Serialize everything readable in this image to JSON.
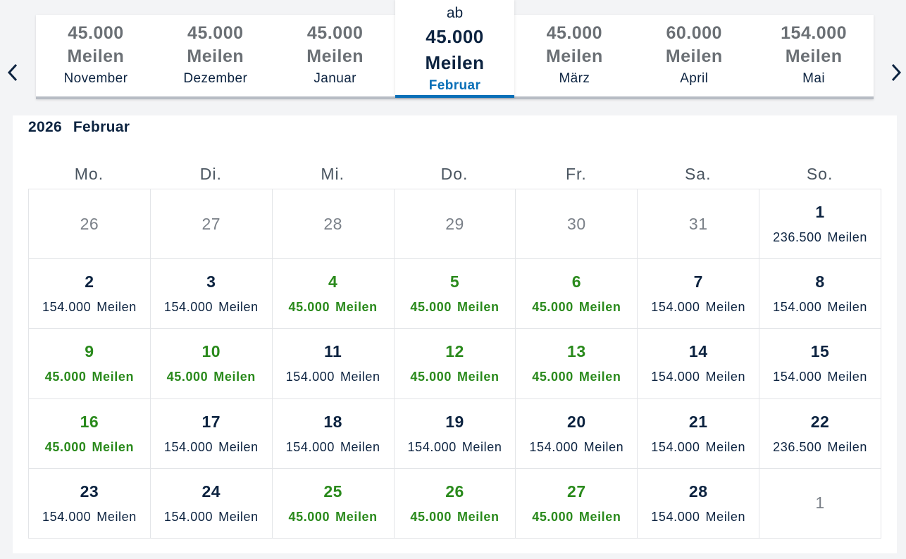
{
  "colors": {
    "accent_blue": "#0a6fb7",
    "cheap_green": "#2a8a1c",
    "text_dark": "#0c2340",
    "muted_gray": "#6b7075"
  },
  "icons": {
    "prev": "chevron-left-icon",
    "next": "chevron-right-icon"
  },
  "months": [
    {
      "miles": "45.000",
      "unit": "Meilen",
      "name": "November"
    },
    {
      "miles": "45.000",
      "unit": "Meilen",
      "name": "Dezember"
    },
    {
      "miles": "45.000",
      "unit": "Meilen",
      "name": "Januar"
    },
    {
      "prefix": "ab",
      "miles": "45.000",
      "unit": "Meilen",
      "name": "Februar",
      "active": true
    },
    {
      "miles": "45.000",
      "unit": "Meilen",
      "name": "März"
    },
    {
      "miles": "60.000",
      "unit": "Meilen",
      "name": "April"
    },
    {
      "miles": "154.000",
      "unit": "Meilen",
      "name": "Mai"
    }
  ],
  "calendar": {
    "year": "2026",
    "month": "Februar",
    "weekdays": [
      "Mo.",
      "Di.",
      "Mi.",
      "Do.",
      "Fr.",
      "Sa.",
      "So."
    ],
    "days": [
      {
        "day": "26",
        "outside": true
      },
      {
        "day": "27",
        "outside": true
      },
      {
        "day": "28",
        "outside": true
      },
      {
        "day": "29",
        "outside": true
      },
      {
        "day": "30",
        "outside": true
      },
      {
        "day": "31",
        "outside": true
      },
      {
        "day": "1",
        "miles": "236.500",
        "unit": "Meilen"
      },
      {
        "day": "2",
        "miles": "154.000",
        "unit": "Meilen"
      },
      {
        "day": "3",
        "miles": "154.000",
        "unit": "Meilen"
      },
      {
        "day": "4",
        "miles": "45.000",
        "unit": "Meilen",
        "cheap": true
      },
      {
        "day": "5",
        "miles": "45.000",
        "unit": "Meilen",
        "cheap": true
      },
      {
        "day": "6",
        "miles": "45.000",
        "unit": "Meilen",
        "cheap": true
      },
      {
        "day": "7",
        "miles": "154.000",
        "unit": "Meilen"
      },
      {
        "day": "8",
        "miles": "154.000",
        "unit": "Meilen"
      },
      {
        "day": "9",
        "miles": "45.000",
        "unit": "Meilen",
        "cheap": true
      },
      {
        "day": "10",
        "miles": "45.000",
        "unit": "Meilen",
        "cheap": true
      },
      {
        "day": "11",
        "miles": "154.000",
        "unit": "Meilen"
      },
      {
        "day": "12",
        "miles": "45.000",
        "unit": "Meilen",
        "cheap": true
      },
      {
        "day": "13",
        "miles": "45.000",
        "unit": "Meilen",
        "cheap": true
      },
      {
        "day": "14",
        "miles": "154.000",
        "unit": "Meilen"
      },
      {
        "day": "15",
        "miles": "154.000",
        "unit": "Meilen"
      },
      {
        "day": "16",
        "miles": "45.000",
        "unit": "Meilen",
        "cheap": true
      },
      {
        "day": "17",
        "miles": "154.000",
        "unit": "Meilen"
      },
      {
        "day": "18",
        "miles": "154.000",
        "unit": "Meilen"
      },
      {
        "day": "19",
        "miles": "154.000",
        "unit": "Meilen"
      },
      {
        "day": "20",
        "miles": "154.000",
        "unit": "Meilen"
      },
      {
        "day": "21",
        "miles": "154.000",
        "unit": "Meilen"
      },
      {
        "day": "22",
        "miles": "236.500",
        "unit": "Meilen"
      },
      {
        "day": "23",
        "miles": "154.000",
        "unit": "Meilen"
      },
      {
        "day": "24",
        "miles": "154.000",
        "unit": "Meilen"
      },
      {
        "day": "25",
        "miles": "45.000",
        "unit": "Meilen",
        "cheap": true
      },
      {
        "day": "26",
        "miles": "45.000",
        "unit": "Meilen",
        "cheap": true
      },
      {
        "day": "27",
        "miles": "45.000",
        "unit": "Meilen",
        "cheap": true
      },
      {
        "day": "28",
        "miles": "154.000",
        "unit": "Meilen"
      },
      {
        "day": "1",
        "outside": true
      }
    ]
  }
}
